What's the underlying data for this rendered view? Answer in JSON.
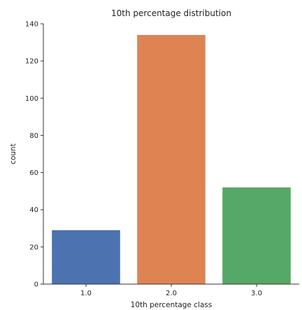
{
  "chart_data": {
    "type": "bar",
    "title": "10th percentage distribution",
    "xlabel": "10th percentage class",
    "ylabel": "count",
    "categories": [
      "1.0",
      "2.0",
      "3.0"
    ],
    "values": [
      29,
      134,
      52
    ],
    "colors": [
      "#4c72b0",
      "#dd8452",
      "#55a868"
    ],
    "ylim": [
      0,
      140
    ],
    "yticks": [
      0,
      20,
      40,
      60,
      80,
      100,
      120,
      140
    ],
    "ytick_labels": [
      "0",
      "20",
      "40",
      "60",
      "80",
      "100",
      "120",
      "140"
    ],
    "grid": false,
    "legend": "none"
  }
}
